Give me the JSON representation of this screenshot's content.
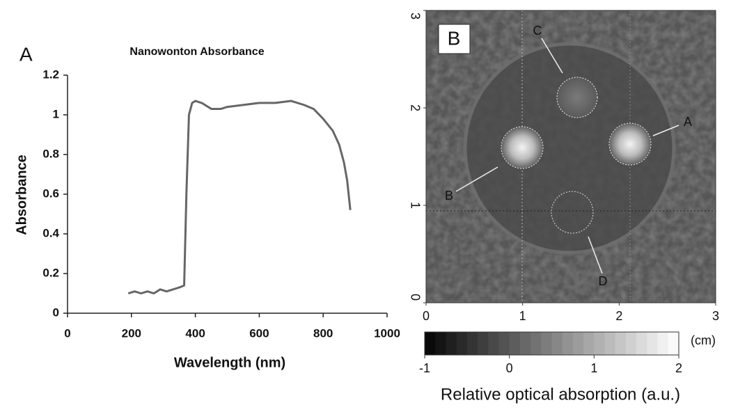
{
  "chart_data": [
    {
      "type": "line",
      "panel": "A",
      "title": "Nanowonton Absorbance",
      "x_label": "Wavelength (nm)",
      "y_label": "Absorbance",
      "x": [
        190,
        210,
        230,
        250,
        270,
        290,
        310,
        330,
        350,
        365,
        372,
        380,
        390,
        400,
        420,
        450,
        480,
        500,
        550,
        600,
        650,
        700,
        740,
        770,
        800,
        830,
        850,
        865,
        875,
        885
      ],
      "series": [
        {
          "name": "Nanowonton",
          "color": "#666666",
          "values": [
            0.1,
            0.11,
            0.1,
            0.11,
            0.1,
            0.12,
            0.11,
            0.12,
            0.13,
            0.14,
            0.6,
            1.0,
            1.06,
            1.07,
            1.06,
            1.03,
            1.03,
            1.04,
            1.05,
            1.06,
            1.06,
            1.07,
            1.05,
            1.03,
            0.98,
            0.92,
            0.85,
            0.76,
            0.67,
            0.52
          ]
        }
      ],
      "xlim": [
        0,
        1000
      ],
      "xticks": [
        0,
        200,
        400,
        600,
        800,
        1000
      ],
      "ylim": [
        0,
        1.2
      ],
      "yticks": [
        0,
        0.2,
        0.4,
        0.6,
        0.8,
        1,
        1.2
      ]
    },
    {
      "type": "image",
      "panel": "B",
      "xlim": [
        0,
        3
      ],
      "xticks": [
        0,
        1,
        2,
        3
      ],
      "ylim": [
        0,
        3
      ],
      "yticks": [
        0,
        1,
        2,
        3
      ],
      "annotations": [
        "A",
        "B",
        "C",
        "D"
      ],
      "unit": "(cm)",
      "clim": [
        -1,
        2
      ],
      "cticks": [
        -1,
        0,
        1,
        2
      ],
      "colorbar_label": "Relative optical absorption (a.u.)"
    }
  ]
}
